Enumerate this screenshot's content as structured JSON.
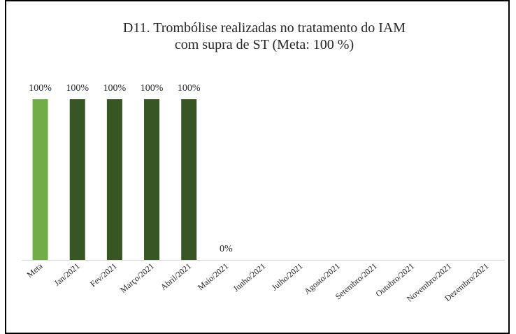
{
  "chart_data": {
    "type": "bar",
    "title": [
      "D11. Trombólise realizadas no tratamento do IAM",
      "com supra de ST     (Meta:  100 %)"
    ],
    "categories": [
      "Meta",
      "Jan/2021",
      "Fev/2021",
      "Março/2021",
      "Abril/2021",
      "Maio/2021",
      "Junho/2021",
      "Julho/2021",
      "Agosto/2021",
      "Setembro/2021",
      "Outubro/2021",
      "Novembro/2021",
      "Dezembro/2021"
    ],
    "values": [
      100,
      100,
      100,
      100,
      100,
      0,
      null,
      null,
      null,
      null,
      null,
      null,
      null
    ],
    "value_labels": [
      "100%",
      "100%",
      "100%",
      "100%",
      "100%",
      "0%",
      null,
      null,
      null,
      null,
      null,
      null,
      null
    ],
    "colors": [
      "#70ad47",
      "#375623",
      "#375623",
      "#375623",
      "#375623",
      "#375623",
      "#375623",
      "#375623",
      "#375623",
      "#375623",
      "#375623",
      "#375623",
      "#375623"
    ],
    "ylim": [
      0,
      100
    ]
  }
}
